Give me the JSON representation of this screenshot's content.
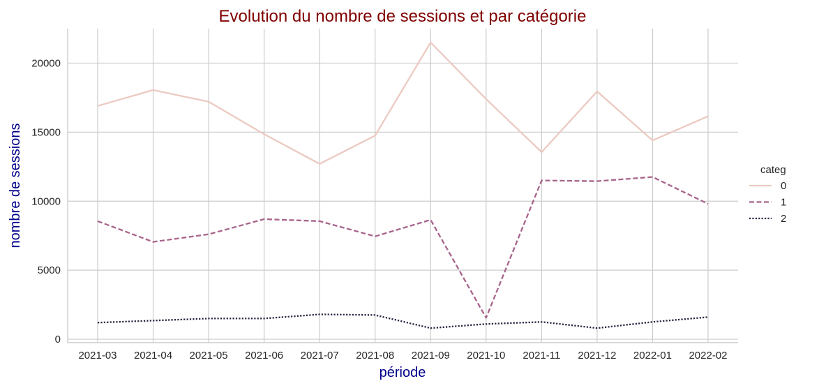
{
  "chart_data": {
    "type": "line",
    "title": "Evolution du nombre de sessions et par catégorie",
    "xlabel": "période",
    "ylabel": "nombre de sessions",
    "categories": [
      "2021-03",
      "2021-04",
      "2021-05",
      "2021-06",
      "2021-07",
      "2021-08",
      "2021-09",
      "2021-10",
      "2021-11",
      "2021-12",
      "2022-01",
      "2022-02"
    ],
    "yticks": [
      0,
      5000,
      10000,
      15000,
      20000
    ],
    "ylim": [
      -250,
      22500
    ],
    "grid": true,
    "legend": {
      "title": "categ",
      "placement": "right"
    },
    "series": [
      {
        "name": "0",
        "color": "#ebcac1",
        "dash": "solid",
        "values": [
          16900,
          18050,
          17200,
          14850,
          12700,
          14750,
          21500,
          17400,
          13550,
          17950,
          14400,
          16150
        ]
      },
      {
        "name": "1",
        "color": "#a8648c",
        "dash": "dashed",
        "values": [
          8550,
          7050,
          7600,
          8700,
          8550,
          7450,
          8650,
          1550,
          11500,
          11450,
          11750,
          9800
        ]
      },
      {
        "name": "2",
        "color": "#2a2240",
        "dash": "dotted",
        "values": [
          1200,
          1350,
          1500,
          1500,
          1800,
          1750,
          800,
          1100,
          1250,
          800,
          1250,
          1600
        ]
      }
    ],
    "colors": {
      "title": "#800000",
      "axis_labels": "#00008b",
      "grid": "#cccccc",
      "axis": "#cccccc"
    }
  }
}
